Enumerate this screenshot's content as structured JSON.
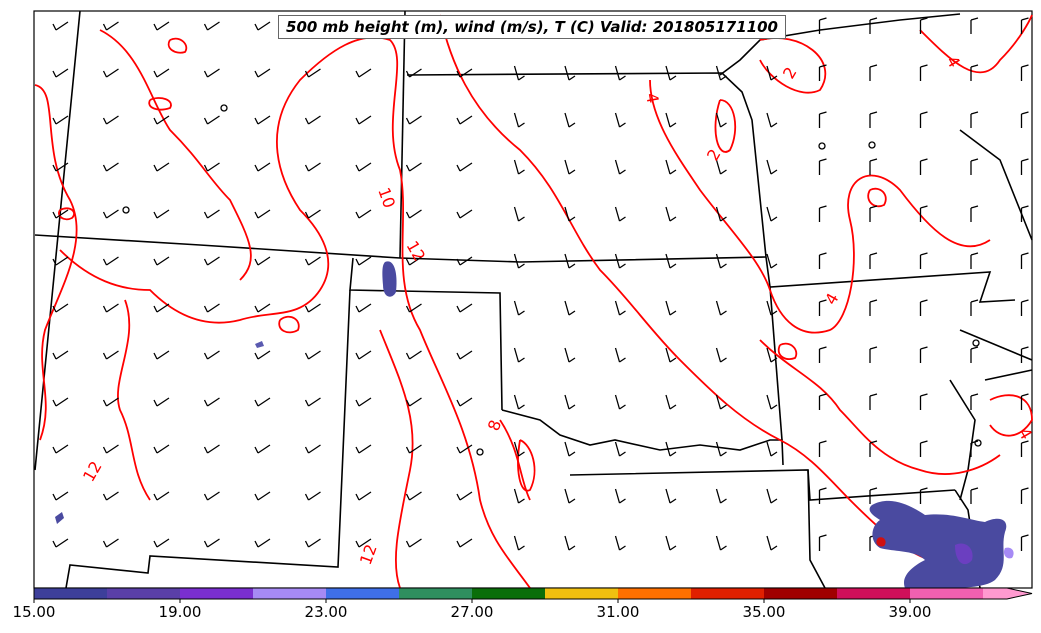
{
  "title": "500 mb height (m), wind (m/s), T (C) Valid: 201805171100",
  "contour_color": "#ff0000",
  "contour_labels": [
    "4",
    "2",
    "2",
    "10",
    "12",
    "4",
    "8",
    "12",
    "12",
    "4",
    "4"
  ],
  "colorbar": {
    "tick_labels": [
      "15.00",
      "19.00",
      "23.00",
      "27.00",
      "31.00",
      "35.00",
      "39.00"
    ],
    "colors": [
      "#3d3f9a",
      "#5a3fa8",
      "#7a2fd0",
      "#a68af5",
      "#3f6fe8",
      "#2f8f5f",
      "#0a6e0a",
      "#f0c010",
      "#ff7000",
      "#e02000",
      "#a00000",
      "#d0105a",
      "#f060b0",
      "#ff9ad0"
    ]
  }
}
